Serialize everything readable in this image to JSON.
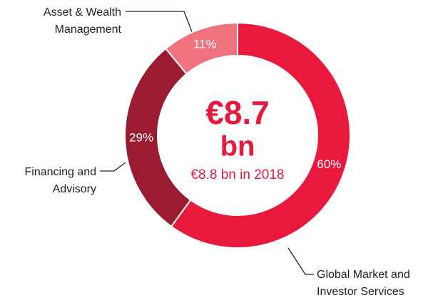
{
  "chart_data": {
    "type": "donut",
    "categories": [
      [
        "Global Market and",
        "Investor Services"
      ],
      [
        "Financing and",
        "Advisory"
      ],
      [
        "Asset & Wealth",
        "Management"
      ]
    ],
    "values": [
      60,
      29,
      11
    ],
    "value_labels": [
      "60%",
      "29%",
      "11%"
    ],
    "colors": [
      "#e8193c",
      "#9b1c31",
      "#f1727f"
    ],
    "center_label": [
      "€8.7",
      "bn"
    ],
    "center_sublabel": "€8.8 bn in 2018"
  }
}
